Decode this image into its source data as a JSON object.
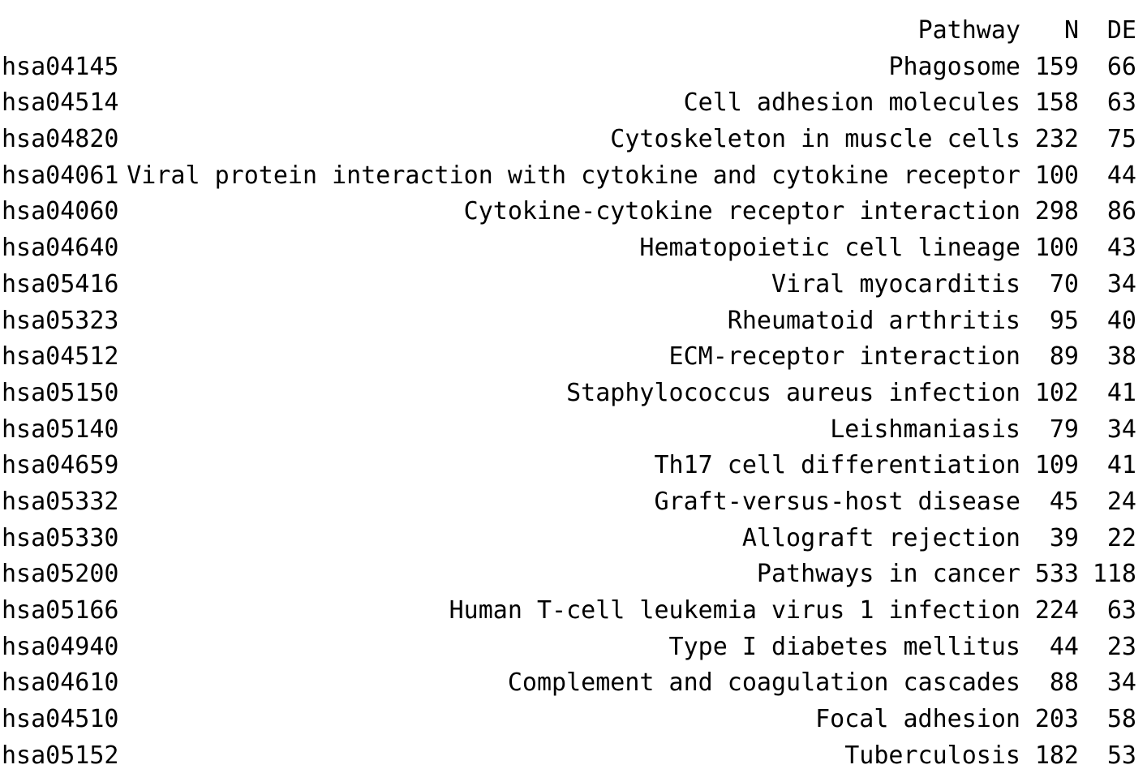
{
  "header": {
    "id": "",
    "pathway": "Pathway",
    "n": "N",
    "de": "DE"
  },
  "rows": [
    {
      "id": "hsa04145",
      "pathway": "Phagosome",
      "n": "159",
      "de": "66"
    },
    {
      "id": "hsa04514",
      "pathway": "Cell adhesion molecules",
      "n": "158",
      "de": "63"
    },
    {
      "id": "hsa04820",
      "pathway": "Cytoskeleton in muscle cells",
      "n": "232",
      "de": "75"
    },
    {
      "id": "hsa04061",
      "pathway": "Viral protein interaction with cytokine and cytokine receptor",
      "n": "100",
      "de": "44"
    },
    {
      "id": "hsa04060",
      "pathway": "Cytokine-cytokine receptor interaction",
      "n": "298",
      "de": "86"
    },
    {
      "id": "hsa04640",
      "pathway": "Hematopoietic cell lineage",
      "n": "100",
      "de": "43"
    },
    {
      "id": "hsa05416",
      "pathway": "Viral myocarditis",
      "n": "70",
      "de": "34"
    },
    {
      "id": "hsa05323",
      "pathway": "Rheumatoid arthritis",
      "n": "95",
      "de": "40"
    },
    {
      "id": "hsa04512",
      "pathway": "ECM-receptor interaction",
      "n": "89",
      "de": "38"
    },
    {
      "id": "hsa05150",
      "pathway": "Staphylococcus aureus infection",
      "n": "102",
      "de": "41"
    },
    {
      "id": "hsa05140",
      "pathway": "Leishmaniasis",
      "n": "79",
      "de": "34"
    },
    {
      "id": "hsa04659",
      "pathway": "Th17 cell differentiation",
      "n": "109",
      "de": "41"
    },
    {
      "id": "hsa05332",
      "pathway": "Graft-versus-host disease",
      "n": "45",
      "de": "24"
    },
    {
      "id": "hsa05330",
      "pathway": "Allograft rejection",
      "n": "39",
      "de": "22"
    },
    {
      "id": "hsa05200",
      "pathway": "Pathways in cancer",
      "n": "533",
      "de": "118"
    },
    {
      "id": "hsa05166",
      "pathway": "Human T-cell leukemia virus 1 infection",
      "n": "224",
      "de": "63"
    },
    {
      "id": "hsa04940",
      "pathway": "Type I diabetes mellitus",
      "n": "44",
      "de": "23"
    },
    {
      "id": "hsa04610",
      "pathway": "Complement and coagulation cascades",
      "n": "88",
      "de": "34"
    },
    {
      "id": "hsa04510",
      "pathway": "Focal adhesion",
      "n": "203",
      "de": "58"
    },
    {
      "id": "hsa05152",
      "pathway": "Tuberculosis",
      "n": "182",
      "de": "53"
    }
  ]
}
